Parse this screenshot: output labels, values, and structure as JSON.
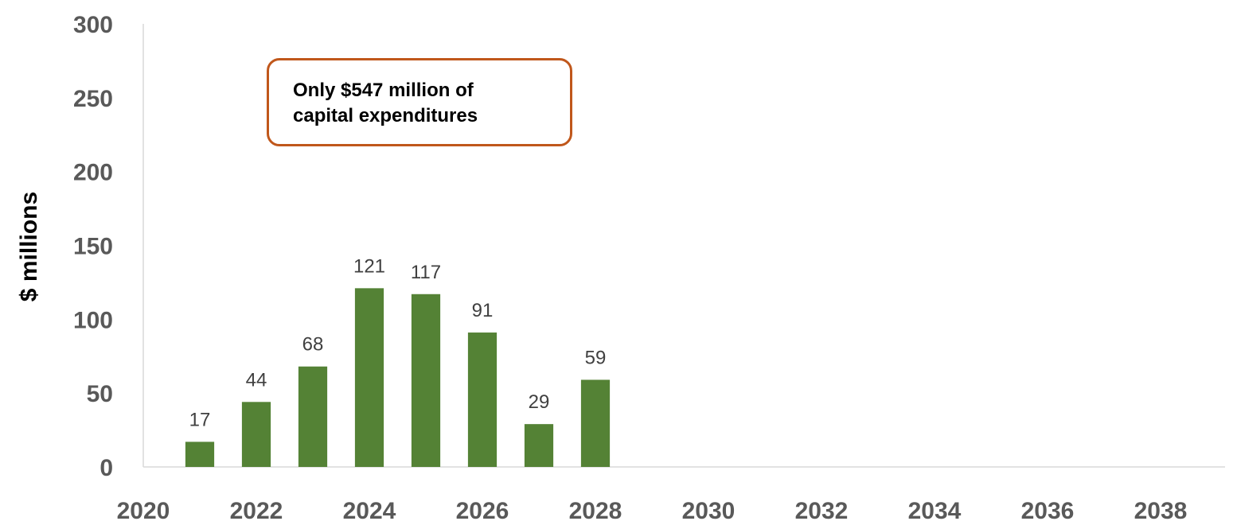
{
  "chart_data": {
    "type": "bar",
    "x": [
      2021,
      2022,
      2023,
      2024,
      2025,
      2026,
      2027,
      2028
    ],
    "values": [
      17,
      44,
      68,
      121,
      117,
      91,
      29,
      59
    ],
    "data_labels": [
      "17",
      "44",
      "68",
      "121",
      "117",
      "91",
      "29",
      "59"
    ],
    "xlim": [
      2020,
      2039
    ],
    "ylim": [
      0,
      300
    ],
    "x_ticks": [
      "2020",
      "2022",
      "2024",
      "2026",
      "2028",
      "2030",
      "2032",
      "2034",
      "2036",
      "2038"
    ],
    "y_ticks": [
      "0",
      "50",
      "100",
      "150",
      "200",
      "250",
      "300"
    ],
    "ylabel": "$ millions",
    "xlabel": "",
    "title": "",
    "grid": false,
    "legend": "none",
    "bar_color": "#548235",
    "annotation": {
      "line1": "Only $547 million of",
      "line2": "capital expenditures",
      "border_color": "#C0571B"
    }
  }
}
